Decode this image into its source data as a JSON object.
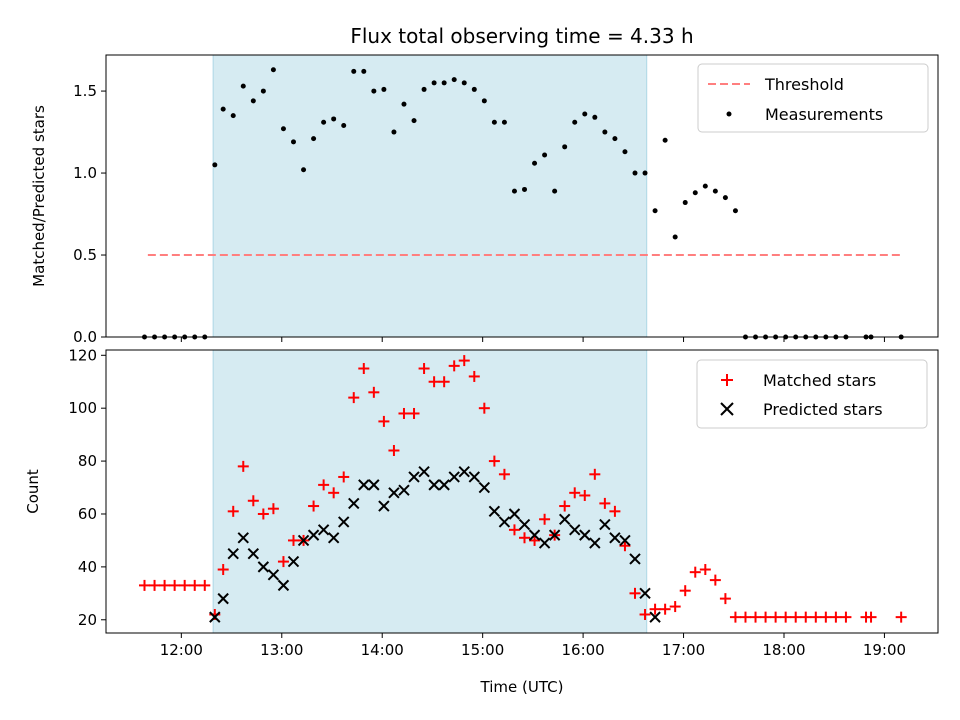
{
  "chart_data": [
    {
      "type": "scatter",
      "title": "Flux total observing time = 4.33 h",
      "xlabel": "",
      "ylabel": "Matched/Predicted stars",
      "xlim": [
        "11:15",
        "19:32"
      ],
      "ylim": [
        0,
        1.72
      ],
      "yticks": [
        0.0,
        0.5,
        1.0,
        1.5
      ],
      "ytick_labels": [
        "0.0",
        "0.5",
        "1.0",
        "1.5"
      ],
      "shaded_interval": [
        "12:19",
        "16:38"
      ],
      "shade_color": "#add8e6",
      "legend_position": "top-right",
      "threshold": {
        "name": "Threshold",
        "value": 0.5,
        "x_start": "11:40",
        "x_end": "19:10",
        "color": "#ff7f7f"
      },
      "series": [
        {
          "name": "Measurements",
          "color": "#000000",
          "x": [
            "11:38",
            "11:44",
            "11:50",
            "11:56",
            "12:02",
            "12:08",
            "12:14",
            "12:20",
            "12:25",
            "12:31",
            "12:37",
            "12:43",
            "12:49",
            "12:55",
            "13:01",
            "13:07",
            "13:13",
            "13:19",
            "13:25",
            "13:31",
            "13:37",
            "13:43",
            "13:49",
            "13:55",
            "14:01",
            "14:07",
            "14:13",
            "14:19",
            "14:25",
            "14:31",
            "14:37",
            "14:43",
            "14:49",
            "14:55",
            "15:01",
            "15:07",
            "15:13",
            "15:19",
            "15:25",
            "15:31",
            "15:37",
            "15:43",
            "15:49",
            "15:55",
            "16:01",
            "16:07",
            "16:13",
            "16:19",
            "16:25",
            "16:31",
            "16:37",
            "16:43",
            "16:49",
            "16:55",
            "17:01",
            "17:07",
            "17:13",
            "17:19",
            "17:25",
            "17:31",
            "17:37",
            "17:43",
            "17:49",
            "17:55",
            "18:01",
            "18:07",
            "18:13",
            "18:19",
            "18:25",
            "18:31",
            "18:37",
            "18:49",
            "18:52",
            "19:10"
          ],
          "y": [
            0,
            0,
            0,
            0,
            0,
            0,
            0,
            1.05,
            1.39,
            1.35,
            1.53,
            1.44,
            1.5,
            1.63,
            1.27,
            1.19,
            1.02,
            1.21,
            1.31,
            1.33,
            1.29,
            1.62,
            1.62,
            1.5,
            1.51,
            1.25,
            1.42,
            1.32,
            1.51,
            1.55,
            1.55,
            1.57,
            1.55,
            1.51,
            1.44,
            1.31,
            1.31,
            0.89,
            0.9,
            1.06,
            1.11,
            0.89,
            1.16,
            1.31,
            1.36,
            1.34,
            1.25,
            1.21,
            1.13,
            1.0,
            1.0,
            0.77,
            1.2,
            0.61,
            0.82,
            0.88,
            0.92,
            0.89,
            0.85,
            0.77,
            0,
            0,
            0,
            0,
            0,
            0,
            0,
            0,
            0,
            0,
            0,
            0,
            0,
            0
          ]
        }
      ]
    },
    {
      "type": "scatter",
      "title": "",
      "xlabel": "Time (UTC)",
      "ylabel": "Count",
      "xlim": [
        "11:15",
        "19:32"
      ],
      "ylim": [
        15,
        122
      ],
      "yticks": [
        20,
        40,
        60,
        80,
        100,
        120
      ],
      "ytick_labels": [
        "20",
        "40",
        "60",
        "80",
        "100",
        "120"
      ],
      "xticks": [
        "12:00",
        "13:00",
        "14:00",
        "15:00",
        "16:00",
        "17:00",
        "18:00",
        "19:00"
      ],
      "shaded_interval": [
        "12:19",
        "16:38"
      ],
      "shade_color": "#add8e6",
      "legend_position": "top-right",
      "series": [
        {
          "name": "Matched stars",
          "marker": "plus",
          "color": "#ff0000",
          "x": [
            "11:38",
            "11:44",
            "11:50",
            "11:56",
            "12:02",
            "12:08",
            "12:14",
            "12:20",
            "12:25",
            "12:31",
            "12:37",
            "12:43",
            "12:49",
            "12:55",
            "13:01",
            "13:07",
            "13:13",
            "13:19",
            "13:25",
            "13:31",
            "13:37",
            "13:43",
            "13:49",
            "13:55",
            "14:01",
            "14:07",
            "14:13",
            "14:19",
            "14:25",
            "14:31",
            "14:37",
            "14:43",
            "14:49",
            "14:55",
            "15:01",
            "15:07",
            "15:13",
            "15:19",
            "15:25",
            "15:31",
            "15:37",
            "15:43",
            "15:49",
            "15:55",
            "16:01",
            "16:07",
            "16:13",
            "16:19",
            "16:25",
            "16:31",
            "16:37",
            "16:43",
            "16:49",
            "16:55",
            "17:01",
            "17:07",
            "17:13",
            "17:19",
            "17:25",
            "17:31",
            "17:37",
            "17:43",
            "17:49",
            "17:55",
            "18:01",
            "18:07",
            "18:13",
            "18:19",
            "18:25",
            "18:31",
            "18:37",
            "18:49",
            "18:52",
            "19:10"
          ],
          "y": [
            33,
            33,
            33,
            33,
            33,
            33,
            33,
            22,
            39,
            61,
            78,
            65,
            60,
            62,
            42,
            50,
            50,
            63,
            71,
            68,
            74,
            104,
            115,
            106,
            95,
            84,
            98,
            98,
            115,
            110,
            110,
            116,
            118,
            112,
            100,
            80,
            75,
            54,
            51,
            50,
            58,
            52,
            63,
            68,
            67,
            75,
            64,
            61,
            48,
            30,
            22,
            24,
            24,
            25,
            31,
            38,
            39,
            35,
            28,
            21,
            21,
            21,
            21,
            21,
            21,
            21,
            21,
            21,
            21,
            21,
            21,
            21,
            21,
            21
          ]
        },
        {
          "name": "Predicted stars",
          "marker": "x",
          "color": "#000000",
          "x": [
            "12:20",
            "12:25",
            "12:31",
            "12:37",
            "12:43",
            "12:49",
            "12:55",
            "13:01",
            "13:07",
            "13:13",
            "13:19",
            "13:25",
            "13:31",
            "13:37",
            "13:43",
            "13:49",
            "13:55",
            "14:01",
            "14:07",
            "14:13",
            "14:19",
            "14:25",
            "14:31",
            "14:37",
            "14:43",
            "14:49",
            "14:55",
            "15:01",
            "15:07",
            "15:13",
            "15:19",
            "15:25",
            "15:31",
            "15:37",
            "15:43",
            "15:49",
            "15:55",
            "16:01",
            "16:07",
            "16:13",
            "16:19",
            "16:25",
            "16:31",
            "16:37",
            "16:43"
          ],
          "y": [
            21,
            28,
            45,
            51,
            45,
            40,
            37,
            33,
            42,
            50,
            52,
            54,
            51,
            57,
            64,
            71,
            71,
            63,
            68,
            69,
            74,
            76,
            71,
            71,
            74,
            76,
            74,
            70,
            61,
            57,
            60,
            56,
            52,
            49,
            52,
            58,
            54,
            52,
            49,
            56,
            51,
            50,
            43,
            30,
            21
          ]
        }
      ]
    }
  ]
}
